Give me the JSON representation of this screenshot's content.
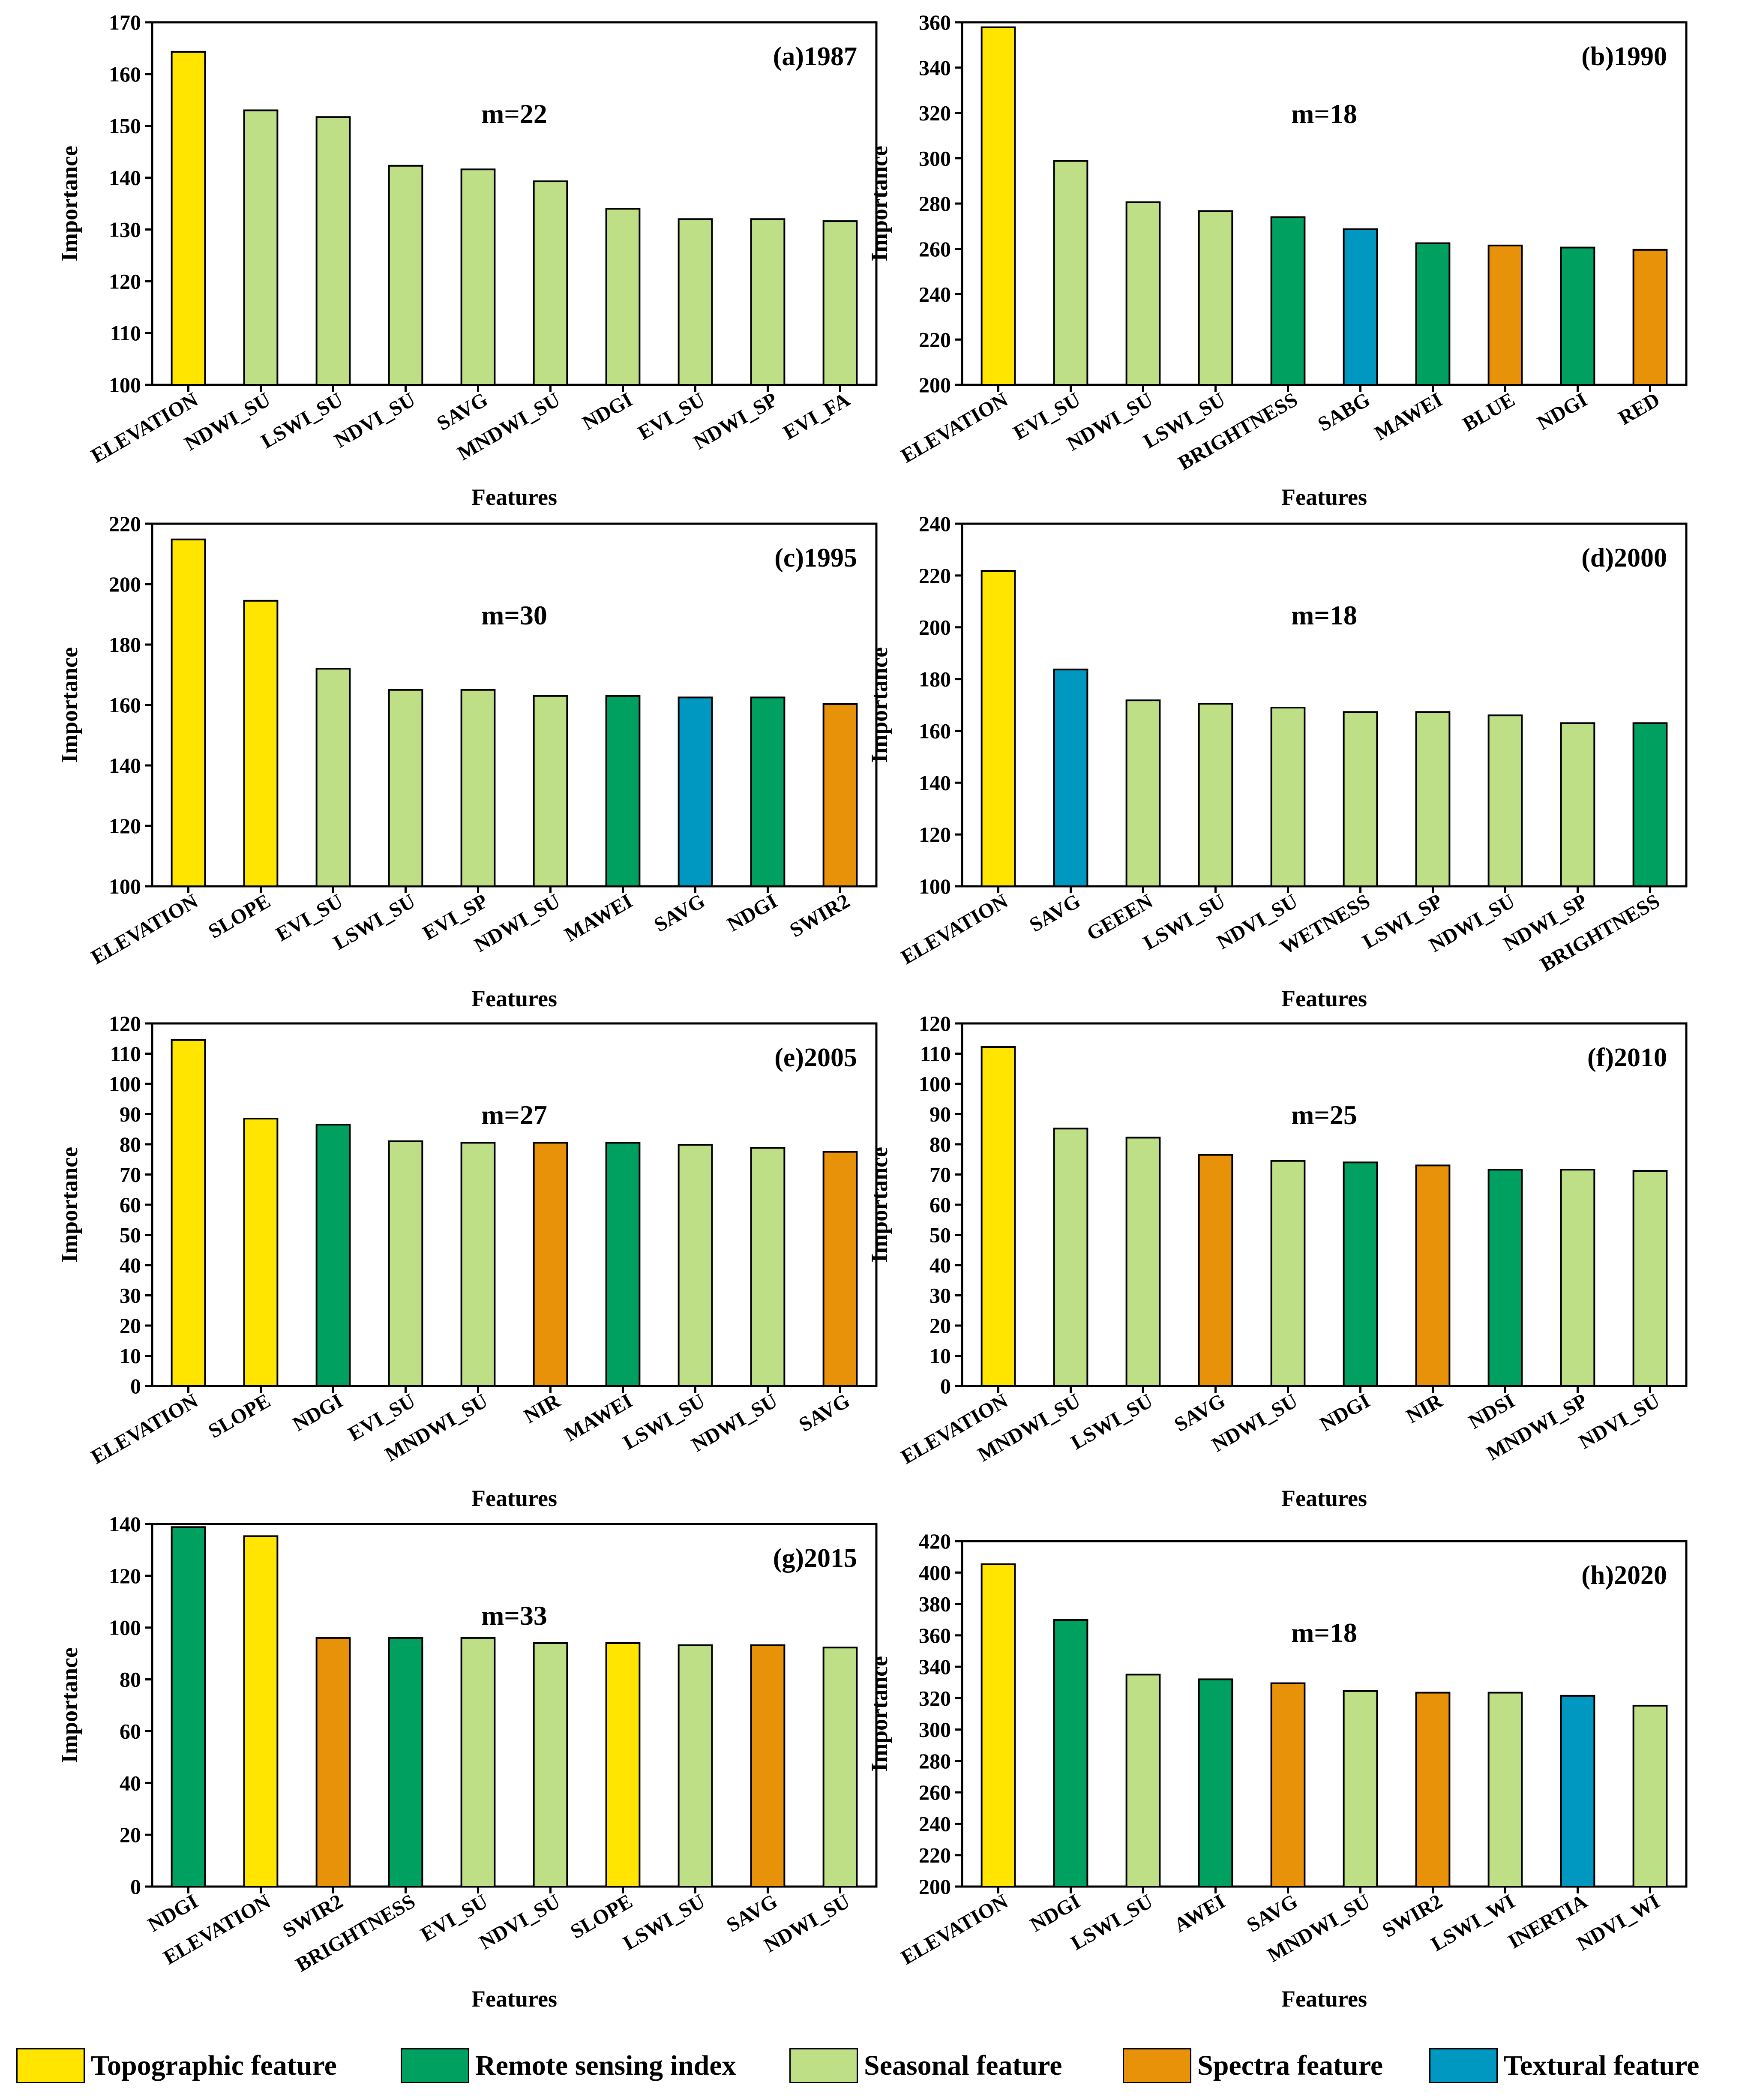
{
  "colors": {
    "topographic": "#FFE500",
    "remote": "#00A060",
    "seasonal": "#BEDF85",
    "spectra": "#E8920A",
    "textural": "#0098C0"
  },
  "legend": [
    {
      "key": "topographic",
      "label": "Topographic feature"
    },
    {
      "key": "remote",
      "label": "Remote sensing index"
    },
    {
      "key": "seasonal",
      "label": "Seasonal feature"
    },
    {
      "key": "spectra",
      "label": "Spectra feature"
    },
    {
      "key": "textural",
      "label": "Textural feature"
    }
  ],
  "chart_data": [
    {
      "type": "bar",
      "title": "(a)1987",
      "annotation": "m=22",
      "xlabel": "Features",
      "ylabel": "Importance",
      "ylim": [
        100,
        170
      ],
      "yticks": [
        100,
        110,
        120,
        130,
        140,
        150,
        160,
        170
      ],
      "categories": [
        "ELEVATION",
        "NDWI_SU",
        "LSWI_SU",
        "NDVI_SU",
        "SAVG",
        "MNDWI_SU",
        "NDGI",
        "EVI_SU",
        "NDWI_SP",
        "EVI_FA"
      ],
      "values": [
        164.3,
        153.0,
        151.7,
        142.3,
        141.6,
        139.3,
        134.0,
        132.0,
        132.0,
        131.6
      ],
      "groups": [
        "topographic",
        "seasonal",
        "seasonal",
        "seasonal",
        "seasonal",
        "seasonal",
        "seasonal",
        "seasonal",
        "seasonal",
        "seasonal"
      ]
    },
    {
      "type": "bar",
      "title": "(b)1990",
      "annotation": "m=18",
      "xlabel": "Features",
      "ylabel": "Importance",
      "ylim": [
        200,
        360
      ],
      "yticks": [
        200,
        220,
        240,
        260,
        280,
        300,
        320,
        340,
        360
      ],
      "categories": [
        "ELEVATION",
        "EVI_SU",
        "NDWI_SU",
        "LSWI_SU",
        "BRIGHTNESS",
        "SABG",
        "MAWEI",
        "BLUE",
        "NDGI",
        "RED"
      ],
      "values": [
        357.8,
        298.8,
        280.6,
        276.7,
        274.0,
        268.7,
        262.5,
        261.5,
        260.6,
        259.6
      ],
      "groups": [
        "topographic",
        "seasonal",
        "seasonal",
        "seasonal",
        "remote",
        "textural",
        "remote",
        "spectra",
        "remote",
        "spectra"
      ]
    },
    {
      "type": "bar",
      "title": "(c)1995",
      "annotation": "m=30",
      "xlabel": "Features",
      "ylabel": "Importance",
      "ylim": [
        100,
        220
      ],
      "yticks": [
        100,
        120,
        140,
        160,
        180,
        200,
        220
      ],
      "categories": [
        "ELEVATION",
        "SLOPE",
        "EVI_SU",
        "LSWI_SU",
        "EVI_SP",
        "NDWI_SU",
        "MAWEI",
        "SAVG",
        "NDGI",
        "SWIR2"
      ],
      "values": [
        214.8,
        194.5,
        172.0,
        165.0,
        165.0,
        163.0,
        163.0,
        162.5,
        162.5,
        160.3
      ],
      "groups": [
        "topographic",
        "topographic",
        "seasonal",
        "seasonal",
        "seasonal",
        "seasonal",
        "remote",
        "textural",
        "remote",
        "spectra"
      ]
    },
    {
      "type": "bar",
      "title": "(d)2000",
      "annotation": "m=18",
      "xlabel": "Features",
      "ylabel": "Importance",
      "ylim": [
        100,
        240
      ],
      "yticks": [
        100,
        120,
        140,
        160,
        180,
        200,
        220,
        240
      ],
      "categories": [
        "ELEVATION",
        "SAVG",
        "GEEEN",
        "LSWI_SU",
        "NDVI_SU",
        "WETNESS",
        "LSWI_SP",
        "NDWI_SU",
        "NDWI_SP",
        "BRIGHTNESS"
      ],
      "values": [
        221.8,
        183.7,
        171.8,
        170.5,
        169.0,
        167.3,
        167.3,
        166.0,
        163.0,
        163.0
      ],
      "groups": [
        "topographic",
        "textural",
        "seasonal",
        "seasonal",
        "seasonal",
        "seasonal",
        "seasonal",
        "seasonal",
        "seasonal",
        "remote"
      ]
    },
    {
      "type": "bar",
      "title": "(e)2005",
      "annotation": "m=27",
      "xlabel": "Features",
      "ylabel": "Importance",
      "ylim": [
        0,
        120
      ],
      "yticks": [
        0,
        10,
        20,
        30,
        40,
        50,
        60,
        70,
        80,
        90,
        100,
        110,
        120
      ],
      "categories": [
        "ELEVATION",
        "SLOPE",
        "NDGI",
        "EVI_SU",
        "MNDWI_SU",
        "NIR",
        "MAWEI",
        "LSWI_SU",
        "NDWI_SU",
        "SAVG"
      ],
      "values": [
        114.5,
        88.5,
        86.5,
        81.0,
        80.5,
        80.5,
        80.5,
        79.8,
        78.8,
        77.5
      ],
      "groups": [
        "topographic",
        "topographic",
        "remote",
        "seasonal",
        "seasonal",
        "spectra",
        "remote",
        "seasonal",
        "seasonal",
        "spectra"
      ]
    },
    {
      "type": "bar",
      "title": "(f)2010",
      "annotation": "m=25",
      "xlabel": "Features",
      "ylabel": "Importance",
      "ylim": [
        0,
        120
      ],
      "yticks": [
        0,
        10,
        20,
        30,
        40,
        50,
        60,
        70,
        80,
        90,
        100,
        110,
        120
      ],
      "categories": [
        "ELEVATION",
        "MNDWI_SU",
        "LSWI_SU",
        "SAVG",
        "NDWI_SU",
        "NDGI",
        "NIR",
        "NDSI",
        "MNDWI_SP",
        "NDVI_SU"
      ],
      "values": [
        112.2,
        85.2,
        82.2,
        76.5,
        74.5,
        74.0,
        73.0,
        71.6,
        71.6,
        71.2
      ],
      "groups": [
        "topographic",
        "seasonal",
        "seasonal",
        "spectra",
        "seasonal",
        "remote",
        "spectra",
        "remote",
        "seasonal",
        "seasonal"
      ]
    },
    {
      "type": "bar",
      "title": "(g)2015",
      "annotation": "m=33",
      "xlabel": "Features",
      "ylabel": "Importance",
      "ylim": [
        0,
        140
      ],
      "yticks": [
        0,
        20,
        40,
        60,
        80,
        100,
        120,
        140
      ],
      "categories": [
        "NDGI",
        "ELEVATION",
        "SWIR2",
        "BRIGHTNESS",
        "EVI_SU",
        "NDVI_SU",
        "SLOPE",
        "LSWI_SU",
        "SAVG",
        "NDWI_SU"
      ],
      "values": [
        138.8,
        135.3,
        96.0,
        96.0,
        96.0,
        94.0,
        94.0,
        93.2,
        93.2,
        92.3
      ],
      "groups": [
        "remote",
        "topographic",
        "spectra",
        "remote",
        "seasonal",
        "seasonal",
        "topographic",
        "seasonal",
        "spectra",
        "seasonal"
      ]
    },
    {
      "type": "bar",
      "title": "(h)2020",
      "annotation": "m=18",
      "xlabel": "Features",
      "ylabel": "Importance",
      "ylim": [
        200,
        420
      ],
      "yticks": [
        200,
        220,
        240,
        260,
        280,
        300,
        320,
        340,
        360,
        380,
        400,
        420
      ],
      "categories": [
        "ELEVATION",
        "NDGI",
        "LSWI_SU",
        "AWEI",
        "SAVG",
        "MNDWI_SU",
        "SWIR2",
        "LSWI_WI",
        "INERTIA",
        "NDVI_WI"
      ],
      "values": [
        405.3,
        369.8,
        335.0,
        332.0,
        329.5,
        324.5,
        323.5,
        323.5,
        321.5,
        315.2
      ],
      "groups": [
        "topographic",
        "remote",
        "seasonal",
        "remote",
        "spectra",
        "seasonal",
        "spectra",
        "seasonal",
        "textural",
        "seasonal"
      ]
    }
  ]
}
